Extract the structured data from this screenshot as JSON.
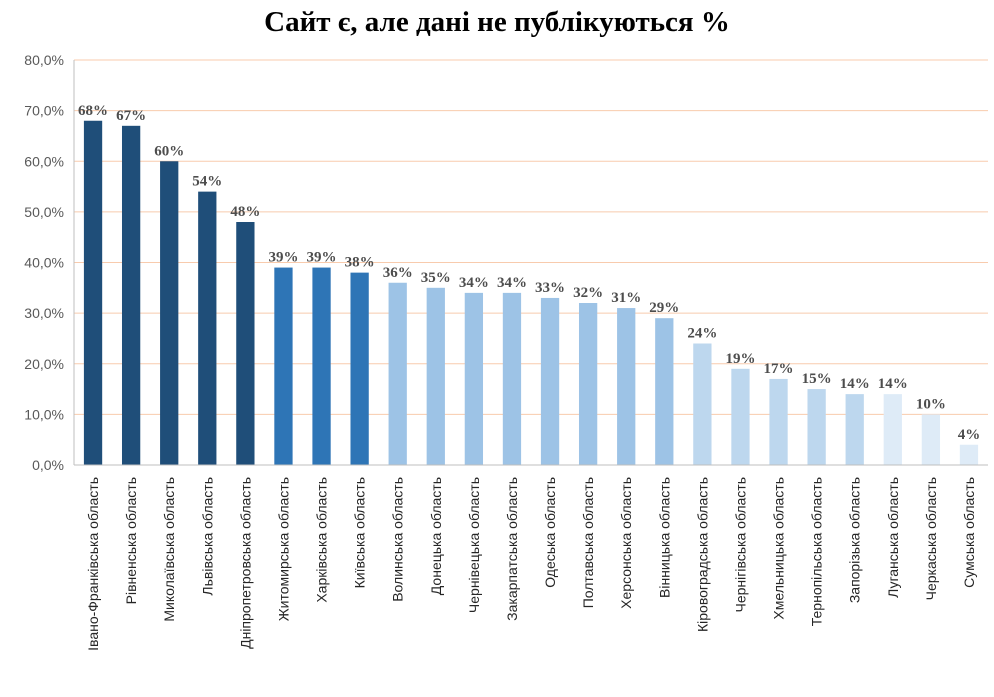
{
  "chart_data": {
    "type": "bar",
    "title": "Сайт є, але дані не публікуються %",
    "xlabel": "",
    "ylabel": "",
    "ylim": [
      0,
      80
    ],
    "ytick_values": [
      0,
      10,
      20,
      30,
      40,
      50,
      60,
      70,
      80
    ],
    "ytick_labels": [
      "0,0%",
      "10,0%",
      "20,0%",
      "30,0%",
      "40,0%",
      "50,0%",
      "60,0%",
      "70,0%",
      "80,0%"
    ],
    "grid": true,
    "legend": "none",
    "categories": [
      "Івано-Франківська область",
      "Рівненська область",
      "Миколаївська область",
      "Львівська область",
      "Дніпропетровська область",
      "Житомирська область",
      "Харківська область",
      "Київська область",
      "Волинська область",
      "Донецька область",
      "Чернівецька область",
      "Закарпатська область",
      "Одеська область",
      "Полтавська область",
      "Херсонська область",
      "Вінницька область",
      "Кіровоградська область",
      "Чернігівська область",
      "Хмельницька область",
      "Тернопільська область",
      "Запорізька область",
      "Луганська область",
      "Черкаська область",
      "Сумська область"
    ],
    "values": [
      68,
      67,
      60,
      54,
      48,
      39,
      39,
      38,
      36,
      35,
      34,
      34,
      33,
      32,
      31,
      29,
      24,
      19,
      17,
      15,
      14,
      14,
      10,
      4
    ],
    "data_labels": [
      "68%",
      "67%",
      "60%",
      "54%",
      "48%",
      "39%",
      "39%",
      "38%",
      "36%",
      "35%",
      "34%",
      "34%",
      "33%",
      "32%",
      "31%",
      "29%",
      "24%",
      "19%",
      "17%",
      "15%",
      "14%",
      "14%",
      "10%",
      "4%"
    ],
    "bar_colors": [
      "#1f4e79",
      "#1f4e79",
      "#1f4e79",
      "#1f4e79",
      "#1f4e79",
      "#2e75b6",
      "#2e75b6",
      "#2e75b6",
      "#9dc3e6",
      "#9dc3e6",
      "#9dc3e6",
      "#9dc3e6",
      "#9dc3e6",
      "#9dc3e6",
      "#9dc3e6",
      "#9dc3e6",
      "#bdd7ee",
      "#bdd7ee",
      "#bdd7ee",
      "#bdd7ee",
      "#bdd7ee",
      "#deebf7",
      "#deebf7",
      "#deebf7"
    ],
    "gridline_color": "#f8cbad",
    "axis_color": "#bfbfbf"
  }
}
